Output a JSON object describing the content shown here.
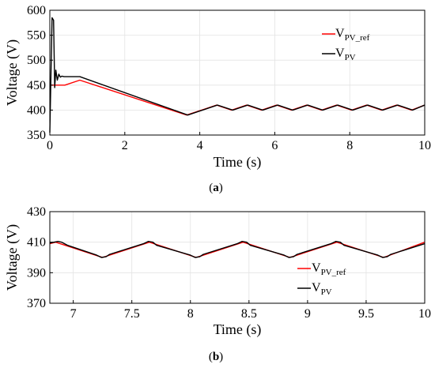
{
  "chart_data": [
    {
      "id": "a",
      "type": "line",
      "caption": "a",
      "xlabel": "Time (s)",
      "ylabel": "Voltage (V)",
      "xlim": [
        0,
        10
      ],
      "ylim": [
        350,
        600
      ],
      "xticks": [
        0,
        2,
        4,
        6,
        8,
        10
      ],
      "yticks": [
        350,
        400,
        450,
        500,
        550,
        600
      ],
      "grid": true,
      "legend_position": "top-right",
      "series": [
        {
          "name_main": "V",
          "name_sub": "PV_ref",
          "color": "#ff0000",
          "x": [
            0,
            0.02,
            0.4,
            0.8,
            3.65,
            4.45,
            4.85,
            5.25,
            5.65,
            6.05,
            6.45,
            6.85,
            7.25,
            7.65,
            8.05,
            8.45,
            8.85,
            9.25,
            9.65,
            10.0
          ],
          "y": [
            450,
            450,
            450,
            460,
            390,
            410,
            400,
            410,
            400,
            410,
            400,
            410,
            400,
            410,
            400,
            410,
            400,
            410,
            400,
            410
          ]
        },
        {
          "name_main": "V",
          "name_sub": "PV",
          "color": "#000000",
          "x": [
            0,
            0.03,
            0.06,
            0.1,
            0.13,
            0.16,
            0.2,
            0.24,
            0.28,
            0.32,
            0.38,
            0.45,
            0.8,
            3.68,
            4.47,
            4.88,
            5.28,
            5.68,
            6.08,
            6.48,
            6.88,
            7.28,
            7.68,
            8.08,
            8.48,
            8.88,
            9.28,
            9.68,
            10.0
          ],
          "y": [
            355,
            470,
            585,
            580,
            445,
            480,
            460,
            472,
            466,
            468,
            467,
            467,
            467,
            390,
            410,
            400,
            410,
            400,
            410,
            400,
            410,
            400,
            410,
            400,
            410,
            400,
            410,
            400,
            410
          ]
        }
      ]
    },
    {
      "id": "b",
      "type": "line",
      "caption": "b",
      "xlabel": "Time (s)",
      "ylabel": "Voltage (V)",
      "xlim": [
        6.8,
        10
      ],
      "ylim": [
        370,
        430
      ],
      "xticks": [
        7,
        7.5,
        8,
        8.5,
        9,
        9.5,
        10
      ],
      "xticklabels": [
        "7",
        "7.5",
        "8",
        "8.5",
        "9",
        "9.5",
        "10"
      ],
      "yticks": [
        370,
        390,
        410,
        430
      ],
      "grid": true,
      "legend_position": "bottom-right",
      "series": [
        {
          "name_main": "V",
          "name_sub": "PV_ref",
          "color": "#ff0000",
          "x": [
            6.8,
            6.85,
            7.25,
            7.65,
            8.05,
            8.45,
            8.85,
            9.25,
            9.65,
            10.0
          ],
          "y": [
            409,
            410,
            400,
            410,
            400,
            410,
            400,
            410,
            400,
            410
          ]
        },
        {
          "name_main": "V",
          "name_sub": "PV",
          "color": "#000000",
          "x": [
            6.8,
            6.87,
            6.9,
            6.95,
            7.2,
            7.24,
            7.28,
            7.31,
            7.6,
            7.64,
            7.68,
            7.71,
            8.0,
            8.04,
            8.08,
            8.11,
            8.4,
            8.44,
            8.48,
            8.51,
            8.8,
            8.84,
            8.88,
            8.91,
            9.2,
            9.24,
            9.28,
            9.31,
            9.6,
            9.64,
            9.68,
            9.71,
            10.0
          ],
          "y": [
            409.5,
            410.5,
            410,
            408,
            401.5,
            400,
            400.5,
            402,
            409,
            410.5,
            410,
            408,
            401.5,
            400,
            400.5,
            402,
            409,
            410.5,
            410,
            408,
            401.5,
            400,
            400.5,
            402,
            409,
            410.5,
            410,
            408,
            401.5,
            400,
            400.5,
            402,
            409
          ]
        }
      ]
    }
  ]
}
